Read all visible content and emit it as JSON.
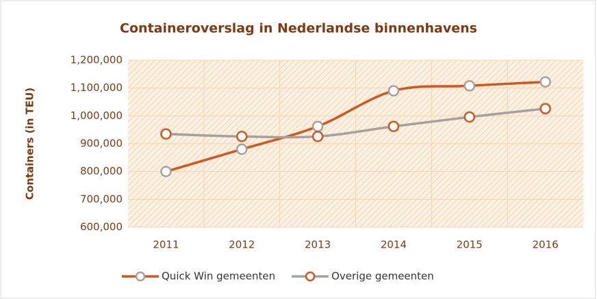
{
  "chart_data": {
    "type": "line",
    "title": "Containeroverslag in Nederlandse binnenhavens",
    "y_label": "Containers (in TEU)",
    "categories": [
      "2011",
      "2012",
      "2013",
      "2014",
      "2015",
      "2016"
    ],
    "series": [
      {
        "name": "Quick Win gemeenten",
        "color": "#d2561e",
        "marker_color": "#a5a19b",
        "values": [
          800000,
          880000,
          962000,
          1090000,
          1108000,
          1122000
        ]
      },
      {
        "name": "Overige gemeenten",
        "color": "#a5a19b",
        "marker_color": "#d2561e",
        "values": [
          935000,
          926000,
          926000,
          962000,
          996000,
          1026000
        ]
      }
    ],
    "ylim": [
      600000,
      1200000
    ],
    "yticks": [
      {
        "value": 600000,
        "label": "600,000"
      },
      {
        "value": 700000,
        "label": "700,000"
      },
      {
        "value": 800000,
        "label": "800,000"
      },
      {
        "value": 900000,
        "label": "900,000"
      },
      {
        "value": 1000000,
        "label": "1,000,000"
      },
      {
        "value": 1100000,
        "label": "1,100,000"
      },
      {
        "value": 1200000,
        "label": "1,200,000"
      }
    ],
    "grid": true,
    "legend": "bottom"
  }
}
